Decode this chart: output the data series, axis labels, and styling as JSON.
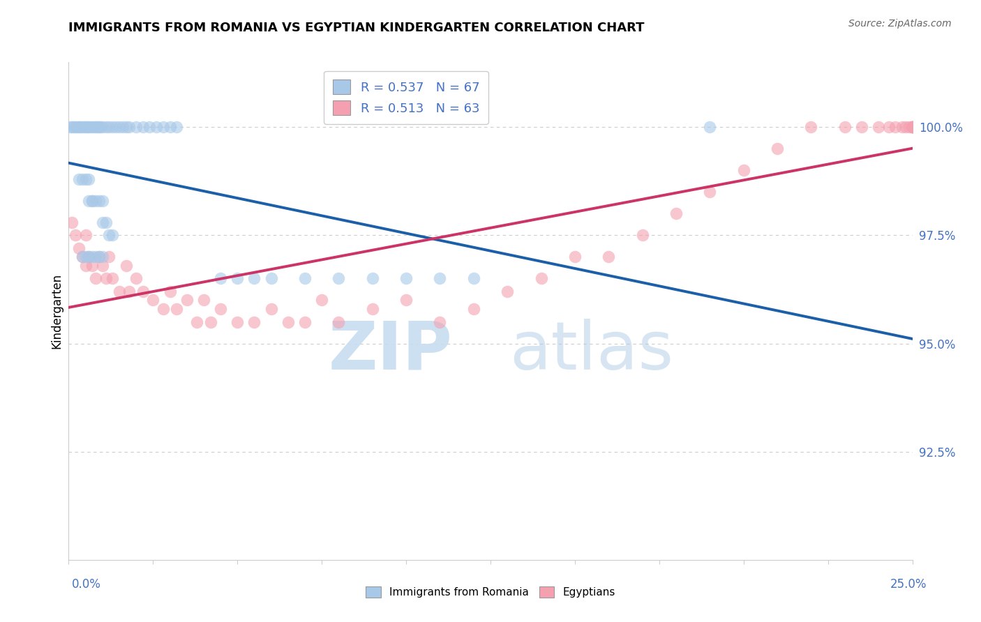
{
  "title": "IMMIGRANTS FROM ROMANIA VS EGYPTIAN KINDERGARTEN CORRELATION CHART",
  "source": "Source: ZipAtlas.com",
  "ylabel": "Kindergarten",
  "xlim": [
    0.0,
    25.0
  ],
  "ylim": [
    90.0,
    101.5
  ],
  "R_romania": 0.537,
  "N_romania": 67,
  "R_egyptian": 0.513,
  "N_egyptian": 63,
  "romania_scatter_color": "#a8c8e8",
  "egyptian_scatter_color": "#f4a0b0",
  "trendline_romania_color": "#1a5fa8",
  "trendline_egyptian_color": "#cc3366",
  "ytick_values": [
    100.0,
    97.5,
    95.0,
    92.5
  ],
  "ytick_labels": [
    "100.0%",
    "97.5%",
    "95.0%",
    "92.5%"
  ],
  "legend_label_romania": "Immigrants from Romania",
  "legend_label_egyptian": "Egyptians",
  "romania_x": [
    0.05,
    0.1,
    0.15,
    0.2,
    0.25,
    0.3,
    0.35,
    0.4,
    0.45,
    0.5,
    0.55,
    0.6,
    0.65,
    0.7,
    0.75,
    0.8,
    0.85,
    0.9,
    0.95,
    1.0,
    1.1,
    1.2,
    1.3,
    1.4,
    1.5,
    1.6,
    1.7,
    1.8,
    2.0,
    2.2,
    2.4,
    2.6,
    2.8,
    3.0,
    3.2,
    0.3,
    0.4,
    0.5,
    0.6,
    0.6,
    0.7,
    0.7,
    0.8,
    0.9,
    1.0,
    1.0,
    1.1,
    1.2,
    1.3,
    0.4,
    0.5,
    0.6,
    0.7,
    0.8,
    0.9,
    1.0,
    4.5,
    5.0,
    5.5,
    6.0,
    7.0,
    8.0,
    9.0,
    10.0,
    11.0,
    12.0,
    19.0
  ],
  "romania_y": [
    100.0,
    100.0,
    100.0,
    100.0,
    100.0,
    100.0,
    100.0,
    100.0,
    100.0,
    100.0,
    100.0,
    100.0,
    100.0,
    100.0,
    100.0,
    100.0,
    100.0,
    100.0,
    100.0,
    100.0,
    100.0,
    100.0,
    100.0,
    100.0,
    100.0,
    100.0,
    100.0,
    100.0,
    100.0,
    100.0,
    100.0,
    100.0,
    100.0,
    100.0,
    100.0,
    98.8,
    98.8,
    98.8,
    98.8,
    98.3,
    98.3,
    98.3,
    98.3,
    98.3,
    98.3,
    97.8,
    97.8,
    97.5,
    97.5,
    97.0,
    97.0,
    97.0,
    97.0,
    97.0,
    97.0,
    97.0,
    96.5,
    96.5,
    96.5,
    96.5,
    96.5,
    96.5,
    96.5,
    96.5,
    96.5,
    96.5,
    100.0
  ],
  "egyptian_x": [
    0.1,
    0.2,
    0.3,
    0.4,
    0.5,
    0.5,
    0.6,
    0.7,
    0.8,
    0.9,
    1.0,
    1.1,
    1.2,
    1.3,
    1.5,
    1.7,
    1.8,
    2.0,
    2.2,
    2.5,
    2.8,
    3.0,
    3.2,
    3.5,
    3.8,
    4.0,
    4.2,
    4.5,
    5.0,
    5.5,
    6.0,
    6.5,
    7.0,
    7.5,
    8.0,
    9.0,
    10.0,
    11.0,
    12.0,
    13.0,
    14.0,
    15.0,
    16.0,
    17.0,
    18.0,
    19.0,
    20.0,
    21.0,
    22.0,
    23.0,
    23.5,
    24.0,
    24.3,
    24.5,
    24.7,
    24.8,
    24.9,
    25.0,
    25.0,
    25.0,
    25.0,
    25.0,
    25.0
  ],
  "egyptian_y": [
    97.8,
    97.5,
    97.2,
    97.0,
    96.8,
    97.5,
    97.0,
    96.8,
    96.5,
    97.0,
    96.8,
    96.5,
    97.0,
    96.5,
    96.2,
    96.8,
    96.2,
    96.5,
    96.2,
    96.0,
    95.8,
    96.2,
    95.8,
    96.0,
    95.5,
    96.0,
    95.5,
    95.8,
    95.5,
    95.5,
    95.8,
    95.5,
    95.5,
    96.0,
    95.5,
    95.8,
    96.0,
    95.5,
    95.8,
    96.2,
    96.5,
    97.0,
    97.0,
    97.5,
    98.0,
    98.5,
    99.0,
    99.5,
    100.0,
    100.0,
    100.0,
    100.0,
    100.0,
    100.0,
    100.0,
    100.0,
    100.0,
    100.0,
    100.0,
    100.0,
    100.0,
    100.0,
    100.0
  ]
}
